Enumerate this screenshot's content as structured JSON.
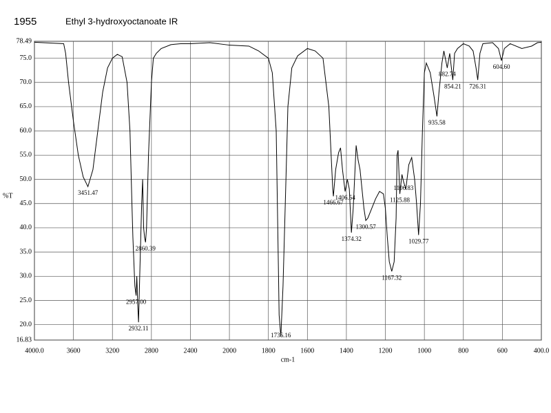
{
  "chart_data": {
    "type": "line",
    "code": "1955",
    "title": "Ethyl 3-hydroxyoctanoate IR",
    "x_label": "cm-1",
    "y_label": "%T",
    "xlim": [
      4000,
      400
    ],
    "ylim": [
      16.83,
      78.49
    ],
    "xticks": [
      {
        "value": 4000,
        "label": "4000.0"
      },
      3600,
      3200,
      2800,
      2400,
      2000,
      1800,
      1600,
      1400,
      1200,
      1000,
      800,
      600,
      {
        "value": 400,
        "label": "400.0"
      }
    ],
    "yticks": [
      16.83,
      {
        "value": 20,
        "label": "20.0"
      },
      {
        "value": 25,
        "label": "25.0"
      },
      {
        "value": 30,
        "label": "30.0"
      },
      {
        "value": 35,
        "label": "35.0"
      },
      {
        "value": 40,
        "label": "40.0"
      },
      {
        "value": 45,
        "label": "45.0"
      },
      {
        "value": 50,
        "label": "50.0"
      },
      {
        "value": 55,
        "label": "55.0"
      },
      {
        "value": 60,
        "label": "60.0"
      },
      {
        "value": 65,
        "label": "65.0"
      },
      {
        "value": 70,
        "label": "70.0"
      },
      {
        "value": 75,
        "label": "75.0"
      },
      78.49
    ],
    "grid": true,
    "x": [
      4000,
      3700,
      3680,
      3650,
      3600,
      3550,
      3500,
      3451.47,
      3400,
      3350,
      3300,
      3250,
      3200,
      3150,
      3100,
      3050,
      3020,
      3000,
      2990,
      2970,
      2957,
      2950,
      2940,
      2932.11,
      2920,
      2900,
      2890,
      2880,
      2870,
      2860.39,
      2850,
      2830,
      2800,
      2780,
      2750,
      2700,
      2600,
      2500,
      2400,
      2200,
      2000,
      1900,
      1850,
      1800,
      1780,
      1760,
      1750,
      1745,
      1736.16,
      1725,
      1710,
      1700,
      1680,
      1650,
      1600,
      1560,
      1520,
      1490,
      1470,
      1466.67,
      1455,
      1440,
      1430,
      1420,
      1406.54,
      1395,
      1385,
      1374.32,
      1365,
      1350,
      1340,
      1330,
      1320,
      1310,
      1300.57,
      1290,
      1270,
      1250,
      1230,
      1210,
      1200,
      1190,
      1180,
      1167.32,
      1155,
      1145,
      1140,
      1135,
      1125.88,
      1115,
      1106.83,
      1095,
      1080,
      1065,
      1050,
      1040,
      1029.77,
      1020,
      1010,
      1000,
      990,
      970,
      950,
      935.58,
      925,
      910,
      900,
      882.74,
      870,
      854.21,
      845,
      830,
      800,
      770,
      750,
      735,
      726.31,
      715,
      700,
      650,
      620,
      604.6,
      590,
      560,
      500,
      450,
      420,
      400
    ],
    "series": [
      {
        "name": "Ethyl 3-hydroxyoctanoate",
        "color": "#000000",
        "values": [
          78.3,
          78.0,
          76,
          70,
          62,
          55,
          50.5,
          48.5,
          52,
          60,
          68,
          73,
          75,
          75.8,
          75.3,
          70,
          60,
          45,
          38,
          28,
          26,
          30,
          24,
          20.5,
          30,
          45,
          50,
          40,
          38,
          37,
          40,
          55,
          70,
          75,
          76,
          77,
          77.8,
          78,
          78,
          78.2,
          77.7,
          77.5,
          76.5,
          75,
          72,
          60,
          35,
          22,
          17.5,
          28,
          50,
          65,
          73,
          75.5,
          77,
          76.5,
          75,
          65,
          48,
          46.5,
          52,
          55.5,
          56.5,
          52,
          47.5,
          50,
          48,
          39,
          44,
          57,
          54,
          52,
          48,
          44,
          41.5,
          42,
          44,
          46,
          47.5,
          47,
          44,
          38,
          33,
          31,
          33,
          42,
          55,
          56,
          47,
          51,
          49.5,
          48,
          53,
          54.5,
          50,
          45,
          38.5,
          45,
          60,
          72,
          74,
          72,
          67,
          63,
          68,
          74,
          76.5,
          73,
          76,
          70.5,
          76,
          77,
          78,
          77.5,
          76.5,
          73,
          70.5,
          76,
          78,
          78.2,
          77,
          74.5,
          77,
          78,
          77,
          77.5,
          78.2,
          78.3
        ]
      }
    ],
    "peaks": [
      3451.47,
      {
        "value": 2957,
        "label": "2957.00"
      },
      2932.11,
      2860.39,
      1736.16,
      1466.67,
      1406.54,
      1374.32,
      1300.57,
      1167.32,
      1125.88,
      1106.83,
      1029.77,
      935.58,
      882.74,
      854.21,
      726.31,
      {
        "value": 604.6,
        "label": "604.60"
      }
    ]
  }
}
